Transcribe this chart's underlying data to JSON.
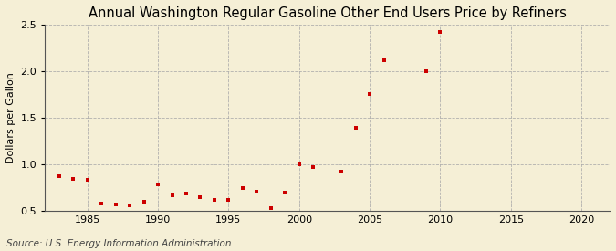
{
  "title": "Annual Washington Regular Gasoline Other End Users Price by Refiners",
  "ylabel": "Dollars per Gallon",
  "source": "Source: U.S. Energy Information Administration",
  "background_color": "#f5efd6",
  "marker_color": "#cc0000",
  "xlim": [
    1982,
    2022
  ],
  "ylim": [
    0.5,
    2.5
  ],
  "xticks": [
    1985,
    1990,
    1995,
    2000,
    2005,
    2010,
    2015,
    2020
  ],
  "yticks": [
    0.5,
    1.0,
    1.5,
    2.0,
    2.5
  ],
  "years": [
    1983,
    1984,
    1985,
    1986,
    1987,
    1988,
    1989,
    1990,
    1991,
    1992,
    1993,
    1994,
    1995,
    1996,
    1997,
    1998,
    1999,
    2000,
    2001,
    2003,
    2004,
    2005,
    2006,
    2009,
    2010
  ],
  "values": [
    0.87,
    0.85,
    0.84,
    0.58,
    0.57,
    0.56,
    0.6,
    0.79,
    0.67,
    0.69,
    0.65,
    0.62,
    0.62,
    0.75,
    0.71,
    0.53,
    0.7,
    1.0,
    0.97,
    0.92,
    1.39,
    1.76,
    2.12,
    2.0,
    2.42
  ],
  "title_fontsize": 10.5,
  "ylabel_fontsize": 8,
  "tick_fontsize": 8,
  "source_fontsize": 7.5
}
